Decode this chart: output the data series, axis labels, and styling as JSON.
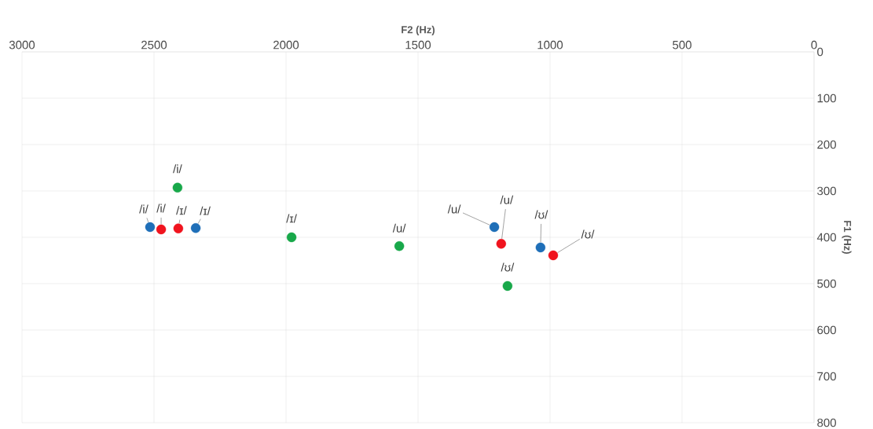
{
  "chart_data": {
    "type": "scatter",
    "xlabel": "F2 (Hz)",
    "ylabel": "F1 (Hz)",
    "xlim": [
      3000,
      0
    ],
    "ylim": [
      800,
      0
    ],
    "xticks": [
      3000,
      2500,
      2000,
      1500,
      1000,
      500,
      0
    ],
    "yticks": [
      0,
      100,
      200,
      300,
      400,
      500,
      600,
      700,
      800
    ],
    "grid": true,
    "series": [
      {
        "color": "#1f6fb8",
        "x": [
          2515,
          2342,
          1211,
          1036
        ],
        "values": [
          378,
          380,
          378,
          422
        ]
      },
      {
        "color": "#f0141e",
        "x": [
          2473,
          2408,
          1185,
          988
        ],
        "values": [
          383,
          381,
          414,
          439
        ]
      },
      {
        "color": "#18a84a",
        "x": [
          2411,
          1979,
          1571,
          1161
        ],
        "values": [
          293,
          400,
          419,
          505
        ]
      }
    ],
    "annotations": [
      {
        "text": "/i/",
        "x": 2515,
        "y": 378
      },
      {
        "text": "/i/",
        "x": 2473,
        "y": 383
      },
      {
        "text": "/ɪ/",
        "x": 2408,
        "y": 381
      },
      {
        "text": "/ɪ/",
        "x": 2342,
        "y": 380
      },
      {
        "text": "/i/",
        "x": 2411,
        "y": 293
      },
      {
        "text": "/ɪ/",
        "x": 1979,
        "y": 400
      },
      {
        "text": "/u/",
        "x": 1571,
        "y": 419
      },
      {
        "text": "/u/",
        "x": 1211,
        "y": 378
      },
      {
        "text": "/u/",
        "x": 1185,
        "y": 414
      },
      {
        "text": "/ʊ/",
        "x": 1036,
        "y": 422
      },
      {
        "text": "/ʊ/",
        "x": 988,
        "y": 439
      },
      {
        "text": "/ʊ/",
        "x": 1161,
        "y": 505
      }
    ]
  }
}
